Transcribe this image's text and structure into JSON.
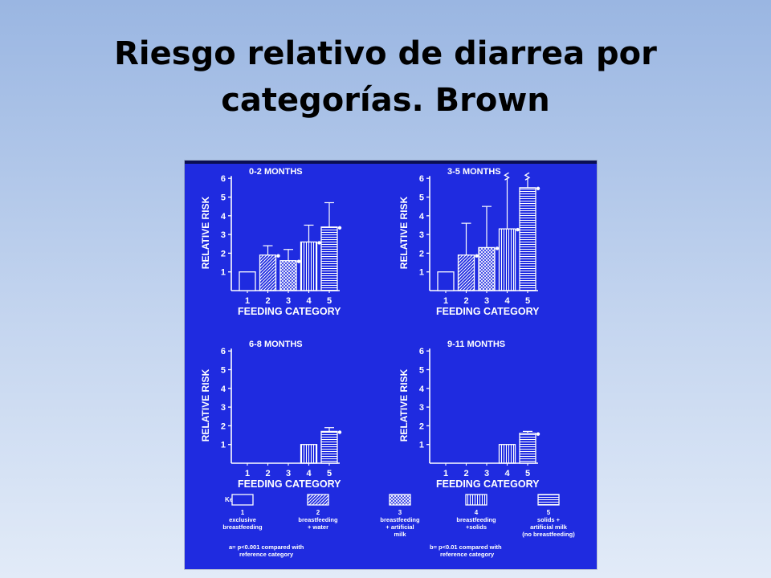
{
  "slide": {
    "title_line1": "Riesgo relativo de diarrea por",
    "title_line2": "categorías. Brown"
  },
  "colors": {
    "panel_background": "#1f2be0",
    "ink": "#ffffff"
  },
  "chart_data": [
    {
      "type": "bar",
      "title": "0-2 MONTHS",
      "xlabel": "FEEDING CATEGORY",
      "ylabel": "RELATIVE RISK",
      "ylim": [
        0,
        6
      ],
      "yticks": [
        "1",
        "2",
        "3",
        "4",
        "5",
        "6"
      ],
      "categories": [
        "1",
        "2",
        "3",
        "4",
        "5"
      ],
      "values": [
        1.0,
        1.9,
        1.6,
        2.6,
        3.4
      ],
      "error_upper": [
        null,
        2.4,
        2.2,
        3.5,
        4.7
      ],
      "significance": [
        "",
        "b",
        "b",
        "a",
        "a"
      ],
      "break_marks": [
        false,
        false,
        false,
        false,
        false
      ]
    },
    {
      "type": "bar",
      "title": "3-5 MONTHS",
      "xlabel": "FEEDING CATEGORY",
      "ylabel": "RELATIVE RISK",
      "ylim": [
        0,
        6
      ],
      "yticks": [
        "1",
        "2",
        "3",
        "4",
        "5",
        "6"
      ],
      "categories": [
        "1",
        "2",
        "3",
        "4",
        "5"
      ],
      "values": [
        1.0,
        1.9,
        2.3,
        3.3,
        5.5
      ],
      "error_upper": [
        null,
        3.6,
        4.5,
        6.0,
        6.0
      ],
      "significance": [
        "",
        "b",
        "b",
        "a",
        "a"
      ],
      "break_marks": [
        false,
        false,
        false,
        true,
        true
      ]
    },
    {
      "type": "bar",
      "title": "6-8 MONTHS",
      "xlabel": "FEEDING CATEGORY",
      "ylabel": "RELATIVE RISK",
      "ylim": [
        0,
        6
      ],
      "yticks": [
        "1",
        "2",
        "3",
        "4",
        "5",
        "6"
      ],
      "categories": [
        "1",
        "2",
        "3",
        "4",
        "5"
      ],
      "values": [
        null,
        null,
        null,
        1.0,
        1.7
      ],
      "error_upper": [
        null,
        null,
        null,
        null,
        1.9
      ],
      "significance": [
        "",
        "",
        "",
        "",
        "a"
      ],
      "break_marks": [
        false,
        false,
        false,
        false,
        false
      ]
    },
    {
      "type": "bar",
      "title": "9-11 MONTHS",
      "xlabel": "FEEDING CATEGORY",
      "ylabel": "RELATIVE RISK",
      "ylim": [
        0,
        6
      ],
      "yticks": [
        "1",
        "2",
        "3",
        "4",
        "5",
        "6"
      ],
      "categories": [
        "1",
        "2",
        "3",
        "4",
        "5"
      ],
      "values": [
        null,
        null,
        null,
        1.0,
        1.6
      ],
      "error_upper": [
        null,
        null,
        null,
        null,
        1.7
      ],
      "significance": [
        "",
        "",
        "",
        "",
        "a"
      ],
      "break_marks": [
        false,
        false,
        false,
        false,
        false
      ]
    }
  ],
  "key": {
    "label": "Key:",
    "items": [
      {
        "number": "1",
        "line1": "exclusive",
        "line2": "breastfeeding",
        "line3": "",
        "pattern": "open"
      },
      {
        "number": "2",
        "line1": "breastfeeding",
        "line2": "+ water",
        "line3": "",
        "pattern": "diagonal"
      },
      {
        "number": "3",
        "line1": "breastfeeding",
        "line2": "+ artificial",
        "line3": "milk",
        "pattern": "crosshatch"
      },
      {
        "number": "4",
        "line1": "breastfeeding",
        "line2": "+solids",
        "line3": "",
        "pattern": "vertical"
      },
      {
        "number": "5",
        "line1": "solids +",
        "line2": "artificial milk",
        "line3": "(no breastfeeding)",
        "pattern": "horizontal"
      }
    ],
    "footnote_a_line1": "a= p<0.001 compared with",
    "footnote_a_line2": "reference category",
    "footnote_b_line1": "b= p<0.01 compared with",
    "footnote_b_line2": "reference category"
  }
}
